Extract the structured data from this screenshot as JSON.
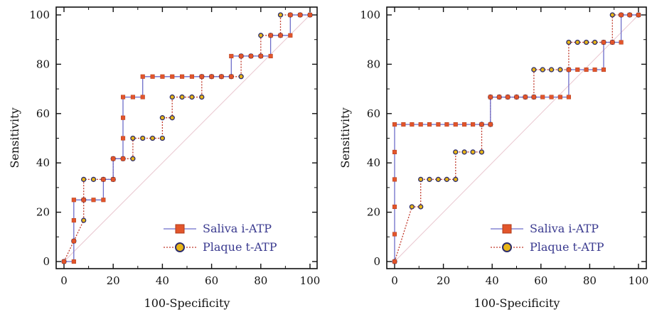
{
  "chart_data": [
    {
      "type": "line",
      "panel": "left",
      "xlabel": "100-Specificity",
      "ylabel": "Sensitivity",
      "xlim": [
        0,
        100
      ],
      "ylim": [
        0,
        100
      ],
      "xticks": [
        "0",
        "20",
        "40",
        "60",
        "80",
        "100"
      ],
      "yticks": [
        "0",
        "20",
        "40",
        "60",
        "80",
        "100"
      ],
      "grid": false,
      "reference_line": "diagonal",
      "legend_position": "bottom-right",
      "series": [
        {
          "name": "Saliva i-ATP",
          "line_color": "#6d6dc9",
          "marker": "square",
          "marker_color": "#e2552b",
          "points": [
            [
              0,
              0
            ],
            [
              4,
              0
            ],
            [
              4,
              8.3
            ],
            [
              4,
              16.7
            ],
            [
              4,
              25
            ],
            [
              8,
              25
            ],
            [
              12,
              25
            ],
            [
              16,
              25
            ],
            [
              16,
              33.3
            ],
            [
              20,
              33.3
            ],
            [
              20,
              41.7
            ],
            [
              24,
              41.7
            ],
            [
              24,
              50
            ],
            [
              24,
              58.3
            ],
            [
              24,
              66.7
            ],
            [
              28,
              66.7
            ],
            [
              32,
              66.7
            ],
            [
              32,
              75
            ],
            [
              36,
              75
            ],
            [
              40,
              75
            ],
            [
              44,
              75
            ],
            [
              48,
              75
            ],
            [
              52,
              75
            ],
            [
              56,
              75
            ],
            [
              60,
              75
            ],
            [
              64,
              75
            ],
            [
              68,
              75
            ],
            [
              68,
              83.3
            ],
            [
              72,
              83.3
            ],
            [
              76,
              83.3
            ],
            [
              80,
              83.3
            ],
            [
              84,
              83.3
            ],
            [
              84,
              91.7
            ],
            [
              88,
              91.7
            ],
            [
              92,
              91.7
            ],
            [
              92,
              100
            ],
            [
              96,
              100
            ],
            [
              100,
              100
            ]
          ]
        },
        {
          "name": "Plaque t-ATP",
          "line_color": "#c0392b",
          "marker": "circle",
          "marker_color": "#e8b516",
          "points": [
            [
              0,
              0
            ],
            [
              4,
              8.3
            ],
            [
              8,
              16.7
            ],
            [
              8,
              25
            ],
            [
              8,
              33.3
            ],
            [
              12,
              33.3
            ],
            [
              16,
              33.3
            ],
            [
              20,
              33.3
            ],
            [
              20,
              41.7
            ],
            [
              24,
              41.7
            ],
            [
              28,
              41.7
            ],
            [
              28,
              50
            ],
            [
              32,
              50
            ],
            [
              36,
              50
            ],
            [
              40,
              50
            ],
            [
              40,
              58.3
            ],
            [
              44,
              58.3
            ],
            [
              44,
              66.7
            ],
            [
              48,
              66.7
            ],
            [
              52,
              66.7
            ],
            [
              56,
              66.7
            ],
            [
              56,
              75
            ],
            [
              60,
              75
            ],
            [
              64,
              75
            ],
            [
              68,
              75
            ],
            [
              72,
              75
            ],
            [
              72,
              83.3
            ],
            [
              76,
              83.3
            ],
            [
              80,
              83.3
            ],
            [
              80,
              91.7
            ],
            [
              84,
              91.7
            ],
            [
              88,
              91.7
            ],
            [
              88,
              100
            ],
            [
              92,
              100
            ],
            [
              96,
              100
            ],
            [
              100,
              100
            ]
          ]
        }
      ]
    },
    {
      "type": "line",
      "panel": "right",
      "xlabel": "100-Specificity",
      "ylabel": "Sensitivity",
      "xlim": [
        0,
        100
      ],
      "ylim": [
        0,
        100
      ],
      "xticks": [
        "0",
        "20",
        "40",
        "60",
        "80",
        "100"
      ],
      "yticks": [
        "0",
        "20",
        "40",
        "60",
        "80",
        "100"
      ],
      "grid": false,
      "reference_line": "diagonal",
      "legend_position": "bottom-right",
      "series": [
        {
          "name": "Saliva i-ATP",
          "line_color": "#6d6dc9",
          "marker": "square",
          "marker_color": "#e2552b",
          "points": [
            [
              0,
              0
            ],
            [
              0,
              11.1
            ],
            [
              0,
              22.2
            ],
            [
              0,
              33.3
            ],
            [
              0,
              44.4
            ],
            [
              0,
              55.6
            ],
            [
              3.6,
              55.6
            ],
            [
              7.1,
              55.6
            ],
            [
              10.7,
              55.6
            ],
            [
              14.3,
              55.6
            ],
            [
              17.9,
              55.6
            ],
            [
              21.4,
              55.6
            ],
            [
              25,
              55.6
            ],
            [
              28.6,
              55.6
            ],
            [
              32.1,
              55.6
            ],
            [
              35.7,
              55.6
            ],
            [
              39.3,
              55.6
            ],
            [
              39.3,
              66.7
            ],
            [
              42.9,
              66.7
            ],
            [
              46.4,
              66.7
            ],
            [
              50,
              66.7
            ],
            [
              53.6,
              66.7
            ],
            [
              57.1,
              66.7
            ],
            [
              60.7,
              66.7
            ],
            [
              64.3,
              66.7
            ],
            [
              67.9,
              66.7
            ],
            [
              71.4,
              66.7
            ],
            [
              71.4,
              77.8
            ],
            [
              75,
              77.8
            ],
            [
              78.6,
              77.8
            ],
            [
              82.1,
              77.8
            ],
            [
              85.7,
              77.8
            ],
            [
              85.7,
              88.9
            ],
            [
              89.3,
              88.9
            ],
            [
              92.9,
              88.9
            ],
            [
              92.9,
              100
            ],
            [
              96.4,
              100
            ],
            [
              100,
              100
            ]
          ]
        },
        {
          "name": "Plaque t-ATP",
          "line_color": "#c0392b",
          "marker": "circle",
          "marker_color": "#e8b516",
          "points": [
            [
              0,
              0
            ],
            [
              7.1,
              22.2
            ],
            [
              10.7,
              22.2
            ],
            [
              10.7,
              33.3
            ],
            [
              14.3,
              33.3
            ],
            [
              17.9,
              33.3
            ],
            [
              21.4,
              33.3
            ],
            [
              25,
              33.3
            ],
            [
              25,
              44.4
            ],
            [
              28.6,
              44.4
            ],
            [
              32.1,
              44.4
            ],
            [
              35.7,
              44.4
            ],
            [
              35.7,
              55.6
            ],
            [
              39.3,
              55.6
            ],
            [
              39.3,
              66.7
            ],
            [
              42.9,
              66.7
            ],
            [
              46.4,
              66.7
            ],
            [
              50,
              66.7
            ],
            [
              53.6,
              66.7
            ],
            [
              57.1,
              66.7
            ],
            [
              57.1,
              77.8
            ],
            [
              60.7,
              77.8
            ],
            [
              64.3,
              77.8
            ],
            [
              67.9,
              77.8
            ],
            [
              71.4,
              77.8
            ],
            [
              71.4,
              88.9
            ],
            [
              75,
              88.9
            ],
            [
              78.6,
              88.9
            ],
            [
              82.1,
              88.9
            ],
            [
              85.7,
              88.9
            ],
            [
              89.3,
              88.9
            ],
            [
              89.3,
              100
            ],
            [
              92.9,
              100
            ],
            [
              96.4,
              100
            ],
            [
              100,
              100
            ]
          ]
        }
      ]
    }
  ]
}
